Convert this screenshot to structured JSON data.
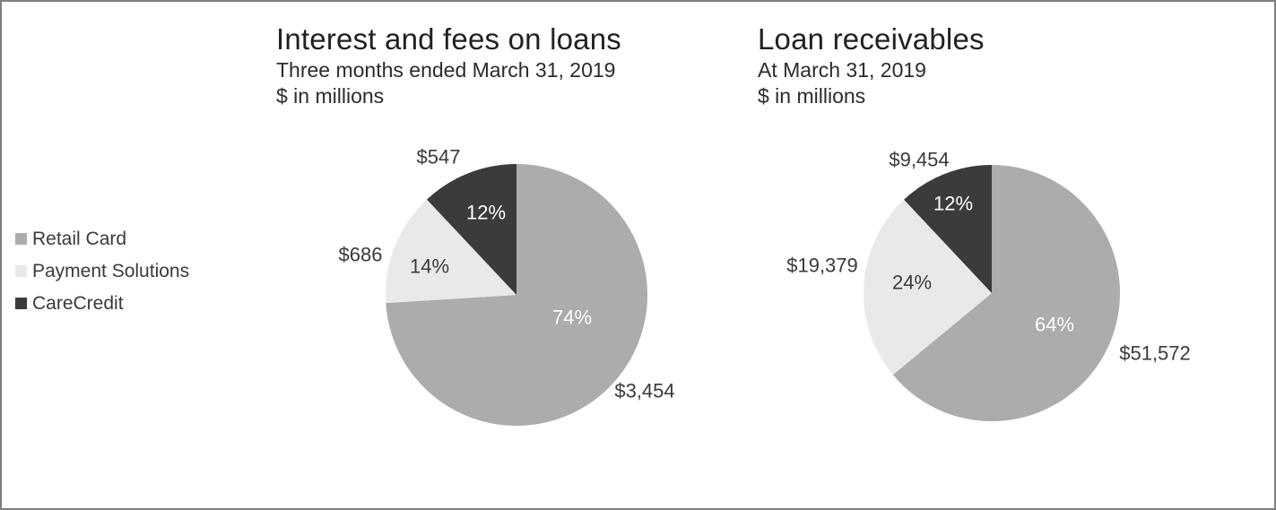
{
  "page": {
    "background_color": "#ffffff",
    "border_color": "#7f7f7f"
  },
  "legend": {
    "items": [
      {
        "label": "Retail Card",
        "color": "#acacac"
      },
      {
        "label": "Payment Solutions",
        "color": "#e9e9e8"
      },
      {
        "label": "CareCredit",
        "color": "#3b3b3b"
      }
    ]
  },
  "chart_data": [
    {
      "type": "pie",
      "title": "Interest and fees on loans",
      "subtitle": "Three months ended March 31, 2019",
      "units": "$ in millions",
      "legend_position": "left",
      "start_angle_deg": 0,
      "direction": "clockwise",
      "slices": [
        {
          "label": "Retail Card",
          "percent": 74,
          "value": 3454,
          "value_label": "$3,454",
          "percent_label": "74%",
          "color": "#acacac",
          "percent_text_color": "#ffffff",
          "value_text_color": "#3a3a3a"
        },
        {
          "label": "Payment Solutions",
          "percent": 14,
          "value": 686,
          "value_label": "$686",
          "percent_label": "14%",
          "color": "#e9e9e8",
          "percent_text_color": "#3b3b3b",
          "value_text_color": "#3a3a3a"
        },
        {
          "label": "CareCredit",
          "percent": 12,
          "value": 547,
          "value_label": "$547",
          "percent_label": "12%",
          "color": "#3b3b3b",
          "percent_text_color": "#ffffff",
          "value_text_color": "#3a3a3a"
        }
      ]
    },
    {
      "type": "pie",
      "title": "Loan receivables",
      "subtitle": "At March 31, 2019",
      "units": "$ in millions",
      "legend_position": "left",
      "start_angle_deg": 0,
      "direction": "clockwise",
      "slices": [
        {
          "label": "Retail Card",
          "percent": 64,
          "value": 51572,
          "value_label": "$51,572",
          "percent_label": "64%",
          "color": "#acacac",
          "percent_text_color": "#ffffff",
          "value_text_color": "#3a3a3a"
        },
        {
          "label": "Payment Solutions",
          "percent": 24,
          "value": 19379,
          "value_label": "$19,379",
          "percent_label": "24%",
          "color": "#e9e9e8",
          "percent_text_color": "#3b3b3b",
          "value_text_color": "#3a3a3a"
        },
        {
          "label": "CareCredit",
          "percent": 12,
          "value": 9454,
          "value_label": "$9,454",
          "percent_label": "12%",
          "color": "#3b3b3b",
          "percent_text_color": "#ffffff",
          "value_text_color": "#3a3a3a"
        }
      ]
    }
  ]
}
